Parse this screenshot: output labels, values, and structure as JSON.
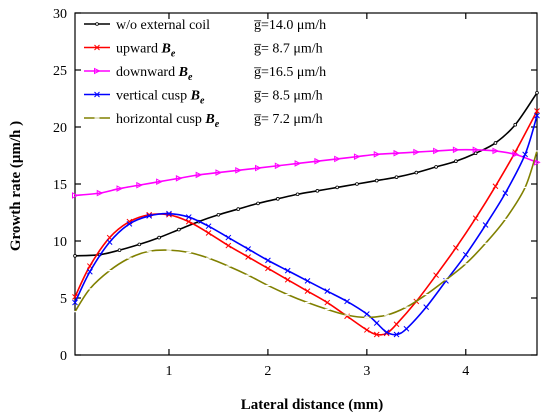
{
  "chart_data": {
    "type": "line",
    "xlabel": "Lateral distance (mm)",
    "ylabel": "Growth rate (μm/h )",
    "xlim": [
      0.05,
      4.72
    ],
    "ylim": [
      0,
      30
    ],
    "x_ticks": [
      1,
      2,
      3,
      4
    ],
    "x_tick_labels": [
      "1",
      "2",
      "3",
      "4"
    ],
    "y_ticks": [
      0,
      5,
      10,
      15,
      20,
      25,
      30
    ],
    "y_tick_labels": [
      "0",
      "5",
      "10",
      "15",
      "20",
      "25",
      "30"
    ],
    "grid": false,
    "legend_position": "top-left",
    "series": [
      {
        "name": "w/o external coil",
        "stats_label": "g̅=14.0 μm/h",
        "color": "#000000",
        "marker": "dot",
        "x": [
          0.05,
          0.3,
          0.5,
          0.7,
          0.9,
          1.1,
          1.3,
          1.5,
          1.7,
          1.9,
          2.1,
          2.3,
          2.5,
          2.7,
          2.9,
          3.1,
          3.3,
          3.5,
          3.7,
          3.9,
          4.1,
          4.3,
          4.5,
          4.72
        ],
        "values": [
          8.7,
          8.8,
          9.2,
          9.7,
          10.3,
          11.0,
          11.7,
          12.3,
          12.8,
          13.3,
          13.7,
          14.1,
          14.4,
          14.7,
          15.0,
          15.3,
          15.6,
          16.0,
          16.5,
          17.0,
          17.7,
          18.6,
          20.2,
          23.0
        ]
      },
      {
        "name": "upward Be",
        "stats_label": "g̅= 8.7 μm/h",
        "color": "#ff0000",
        "marker": "x",
        "x": [
          0.05,
          0.2,
          0.4,
          0.6,
          0.8,
          1.0,
          1.2,
          1.4,
          1.6,
          1.8,
          2.0,
          2.2,
          2.4,
          2.6,
          2.8,
          3.0,
          3.1,
          3.2,
          3.3,
          3.5,
          3.7,
          3.9,
          4.1,
          4.3,
          4.5,
          4.72
        ],
        "values": [
          5.1,
          7.8,
          10.3,
          11.7,
          12.3,
          12.3,
          11.7,
          10.7,
          9.6,
          8.6,
          7.6,
          6.6,
          5.6,
          4.6,
          3.4,
          2.2,
          1.8,
          1.9,
          2.7,
          4.7,
          7.0,
          9.4,
          12.0,
          14.8,
          17.8,
          21.4
        ]
      },
      {
        "name": "downward Be",
        "stats_label": "g̅=16.5 μm/h",
        "color": "#ff00ff",
        "marker": "triangle",
        "x": [
          0.05,
          0.3,
          0.5,
          0.7,
          0.9,
          1.1,
          1.3,
          1.5,
          1.7,
          1.9,
          2.1,
          2.3,
          2.5,
          2.7,
          2.9,
          3.1,
          3.3,
          3.5,
          3.7,
          3.9,
          4.1,
          4.3,
          4.5,
          4.72
        ],
        "values": [
          14.0,
          14.2,
          14.6,
          14.9,
          15.2,
          15.5,
          15.8,
          16.0,
          16.2,
          16.4,
          16.6,
          16.8,
          17.0,
          17.2,
          17.4,
          17.6,
          17.7,
          17.8,
          17.9,
          18.0,
          18.0,
          17.9,
          17.6,
          16.9
        ]
      },
      {
        "name": "vertical cusp Be",
        "stats_label": "g̅= 8.5 μm/h",
        "color": "#0000ff",
        "marker": "x",
        "x": [
          0.05,
          0.2,
          0.4,
          0.6,
          0.8,
          1.0,
          1.2,
          1.4,
          1.6,
          1.8,
          2.0,
          2.2,
          2.4,
          2.6,
          2.8,
          3.0,
          3.1,
          3.2,
          3.3,
          3.4,
          3.6,
          3.8,
          4.0,
          4.2,
          4.4,
          4.6,
          4.72
        ],
        "values": [
          4.6,
          7.3,
          9.9,
          11.5,
          12.2,
          12.4,
          12.1,
          11.3,
          10.3,
          9.3,
          8.3,
          7.4,
          6.5,
          5.6,
          4.7,
          3.6,
          2.8,
          2.0,
          1.8,
          2.3,
          4.2,
          6.5,
          8.8,
          11.4,
          14.2,
          17.6,
          21.0
        ]
      },
      {
        "name": "horizontal cusp Be",
        "stats_label": "g̅= 7.2 μm/h",
        "color": "#808000",
        "marker": "dash",
        "x": [
          0.05,
          0.2,
          0.4,
          0.6,
          0.8,
          1.0,
          1.2,
          1.4,
          1.6,
          1.8,
          2.0,
          2.2,
          2.4,
          2.6,
          2.8,
          3.0,
          3.2,
          3.4,
          3.6,
          3.8,
          4.0,
          4.2,
          4.4,
          4.6,
          4.72
        ],
        "values": [
          3.8,
          5.8,
          7.4,
          8.5,
          9.1,
          9.2,
          9.0,
          8.5,
          7.8,
          7.0,
          6.1,
          5.3,
          4.6,
          4.0,
          3.5,
          3.3,
          3.5,
          4.2,
          5.3,
          6.6,
          8.0,
          9.8,
          11.9,
          14.7,
          17.9
        ]
      }
    ]
  }
}
